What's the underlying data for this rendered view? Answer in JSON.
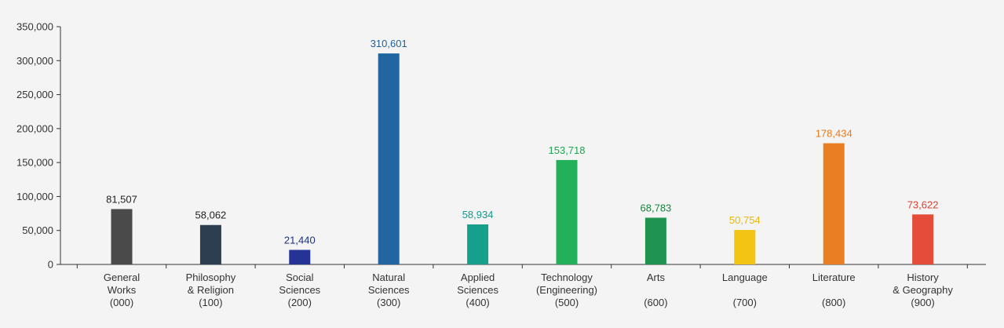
{
  "chart_data": {
    "type": "bar",
    "title": "",
    "xlabel": "",
    "ylabel": "",
    "ylim": [
      0,
      350000
    ],
    "yticks": [
      0,
      50000,
      100000,
      150000,
      200000,
      250000,
      300000,
      350000
    ],
    "ytick_labels": [
      "0",
      "50,000",
      "100,000",
      "150,000",
      "200,000",
      "250,000",
      "300,000",
      "350,000"
    ],
    "grid": false,
    "legend": "none",
    "categories": [
      {
        "lines": [
          "General",
          "Works",
          "(000)"
        ]
      },
      {
        "lines": [
          "Philosophy",
          "& Religion",
          "(100)"
        ]
      },
      {
        "lines": [
          "Social",
          "Sciences",
          "(200)"
        ]
      },
      {
        "lines": [
          "Natural",
          "Sciences",
          "(300)"
        ]
      },
      {
        "lines": [
          "Applied",
          "Sciences",
          "(400)"
        ]
      },
      {
        "lines": [
          "Technology",
          "(Engineering)",
          "(500)"
        ]
      },
      {
        "lines": [
          "Arts",
          "",
          "(600)"
        ]
      },
      {
        "lines": [
          "Language",
          "",
          "(700)"
        ]
      },
      {
        "lines": [
          "Literature",
          "",
          "(800)"
        ]
      },
      {
        "lines": [
          "History",
          "& Geography",
          "(900)"
        ]
      }
    ],
    "values": [
      81507,
      58062,
      21440,
      310601,
      58934,
      153718,
      68783,
      50754,
      178434,
      73622
    ],
    "value_labels": [
      "81,507",
      "58,062",
      "21,440",
      "310,601",
      "58,934",
      "153,718",
      "68,783",
      "50,754",
      "178,434",
      "73,622"
    ],
    "bar_colors": [
      "#4a4a4a",
      "#2c3e50",
      "#253494",
      "#2166a0",
      "#16a08c",
      "#22b05a",
      "#1e9450",
      "#f2c413",
      "#ea7e22",
      "#e64c3a"
    ],
    "label_colors": [
      "#222222",
      "#222222",
      "#1f2f80",
      "#1f5f99",
      "#13998a",
      "#1aa650",
      "#17833f",
      "#e8b90d",
      "#e87a1e",
      "#d8412f"
    ]
  }
}
